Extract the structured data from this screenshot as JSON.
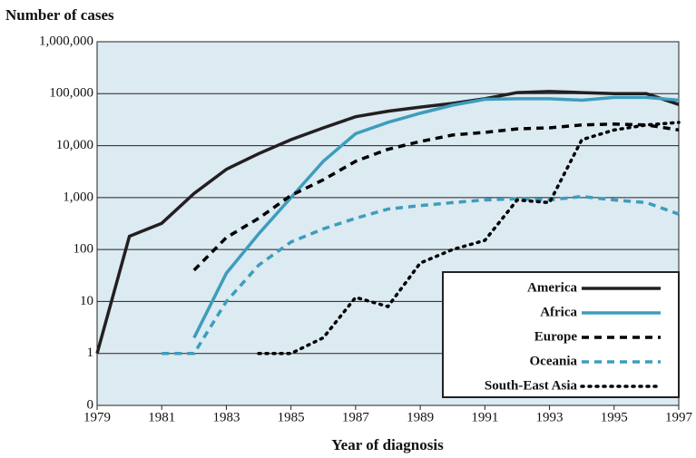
{
  "chart_data": {
    "type": "line",
    "y_axis_title": "Number of cases",
    "x_axis_title": "Year of diagnosis",
    "x": [
      1979,
      1980,
      1981,
      1982,
      1983,
      1984,
      1985,
      1986,
      1987,
      1988,
      1989,
      1990,
      1991,
      1992,
      1993,
      1994,
      1995,
      1996,
      1997
    ],
    "xlim": [
      1979,
      1997
    ],
    "xticks": [
      1979,
      1981,
      1983,
      1985,
      1987,
      1989,
      1991,
      1993,
      1995,
      1997
    ],
    "ylim": [
      0.1,
      1000000
    ],
    "log_scale": true,
    "grid": true,
    "legend": "lower right",
    "yticks": [
      0,
      1,
      10,
      100,
      {
        "value": 1000,
        "label": "1,000"
      },
      {
        "value": 10000,
        "label": "10,000"
      },
      {
        "value": 100000,
        "label": "100,000"
      },
      {
        "value": 1000000,
        "label": "1,000,000"
      }
    ],
    "series": [
      {
        "name": "America",
        "color": "#231f20",
        "line_style": "solid",
        "values": [
          1,
          180,
          320,
          1200,
          3500,
          7000,
          13000,
          22000,
          36000,
          46000,
          55000,
          65000,
          80000,
          105000,
          110000,
          105000,
          100000,
          100000,
          62000
        ]
      },
      {
        "name": "Africa",
        "color": "#3d9dbd",
        "line_style": "solid",
        "values": [
          null,
          null,
          null,
          2,
          35,
          200,
          1000,
          5000,
          17000,
          28000,
          42000,
          60000,
          78000,
          80000,
          80000,
          75000,
          85000,
          85000,
          75000
        ]
      },
      {
        "name": "Europe",
        "color": "#000000",
        "line_style": "dashed",
        "values": [
          null,
          null,
          null,
          40,
          170,
          400,
          1100,
          2200,
          5000,
          8500,
          12000,
          16000,
          18000,
          21000,
          22000,
          25000,
          26000,
          25000,
          20000
        ]
      },
      {
        "name": "Oceania",
        "color": "#3d9dbd",
        "line_style": "dashed",
        "values": [
          null,
          null,
          1,
          1,
          10,
          50,
          140,
          250,
          400,
          600,
          700,
          800,
          900,
          950,
          900,
          1050,
          900,
          800,
          480
        ]
      },
      {
        "name": "South-East Asia",
        "color": "#000000",
        "line_style": "dotted",
        "values": [
          null,
          null,
          null,
          null,
          null,
          1,
          1,
          2,
          12,
          8,
          55,
          100,
          150,
          900,
          800,
          13000,
          20000,
          25000,
          28000
        ]
      }
    ]
  }
}
